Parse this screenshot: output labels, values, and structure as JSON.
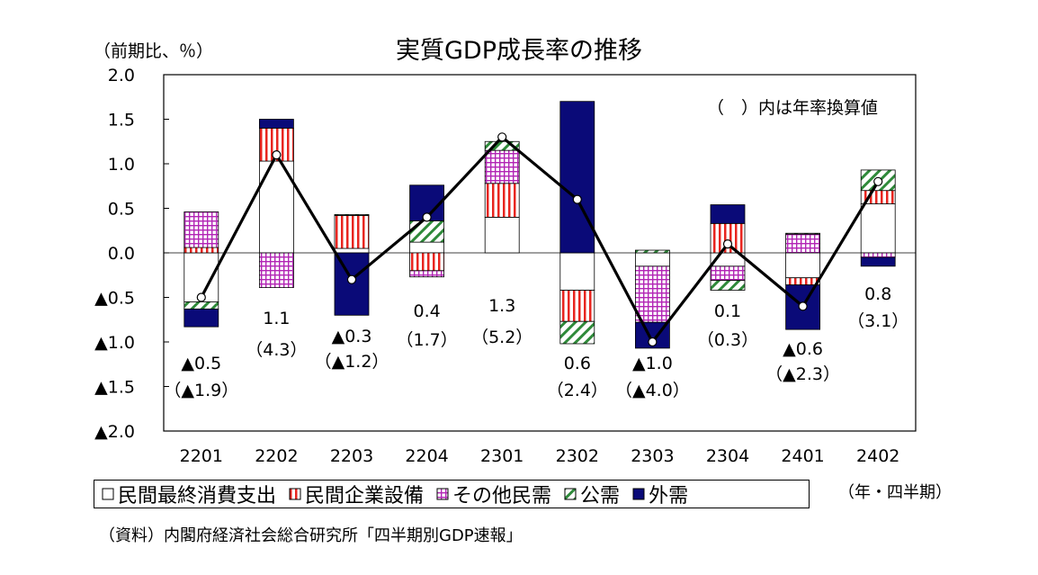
{
  "chart_data": {
    "type": "bar",
    "subtype": "stacked bar with line",
    "title": "実質GDP成長率の推移",
    "unit_label": "（前期比、％）",
    "note": "（　）内は年率換算値",
    "period_label": "（年・四半期）",
    "source": "（資料）内閣府経済社会総合研究所「四半期別GDP速報」",
    "categories": [
      "2201",
      "2202",
      "2203",
      "2204",
      "2301",
      "2302",
      "2303",
      "2304",
      "2401",
      "2402"
    ],
    "ylim": [
      -2.0,
      2.0
    ],
    "yticks": [
      2.0,
      1.5,
      1.0,
      0.5,
      0.0,
      -0.5,
      -1.0,
      -1.5,
      -2.0
    ],
    "ytick_labels": [
      "2.0",
      "1.5",
      "1.0",
      "0.5",
      "0.0",
      "▲0.5",
      "▲1.0",
      "▲1.5",
      "▲2.0"
    ],
    "grid": false,
    "legend_position": "bottom",
    "series": [
      {
        "name": "民間最終消費支出",
        "pattern": "white",
        "color": "#ffffff",
        "values": [
          -0.55,
          1.03,
          0.05,
          0.12,
          0.4,
          -0.42,
          -0.15,
          -0.15,
          -0.28,
          0.55
        ]
      },
      {
        "name": "民間企業設備",
        "pattern": "vertical-stripes",
        "color": "#e8251f",
        "values": [
          0.06,
          0.37,
          0.37,
          -0.2,
          0.38,
          -0.35,
          0.0,
          0.33,
          -0.08,
          0.15
        ]
      },
      {
        "name": "その他民需",
        "pattern": "grid",
        "color": "#b225b5",
        "values": [
          0.4,
          -0.39,
          0.0,
          -0.07,
          0.37,
          0.0,
          -0.63,
          -0.16,
          0.21,
          -0.05
        ]
      },
      {
        "name": "公需",
        "pattern": "diagonal",
        "color": "#2f8a3a",
        "values": [
          -0.08,
          0.0,
          0.01,
          0.24,
          0.1,
          -0.25,
          0.03,
          -0.11,
          0.01,
          0.23
        ]
      },
      {
        "name": "外需",
        "pattern": "solid",
        "color": "#0a0a78",
        "values": [
          -0.2,
          0.1,
          -0.7,
          0.4,
          0.0,
          1.7,
          -0.29,
          0.21,
          -0.5,
          -0.1
        ]
      }
    ],
    "line": {
      "name": "実質GDP成長率",
      "values": [
        -0.5,
        1.1,
        -0.3,
        0.4,
        1.3,
        0.6,
        -1.0,
        0.1,
        -0.6,
        0.8
      ]
    },
    "value_labels": [
      {
        "qoq": "▲0.5",
        "annual": "（▲1.9）"
      },
      {
        "qoq": "1.1",
        "annual": "（4.3）"
      },
      {
        "qoq": "▲0.3",
        "annual": "（▲1.2）"
      },
      {
        "qoq": "0.4",
        "annual": "（1.7）"
      },
      {
        "qoq": "1.3",
        "annual": "（5.2）"
      },
      {
        "qoq": "0.6",
        "annual": "（2.4）"
      },
      {
        "qoq": "▲1.0",
        "annual": "（▲4.0）"
      },
      {
        "qoq": "0.1",
        "annual": "（0.3）"
      },
      {
        "qoq": "▲0.6",
        "annual": "（▲2.3）"
      },
      {
        "qoq": "0.8",
        "annual": "（3.1）"
      }
    ]
  }
}
